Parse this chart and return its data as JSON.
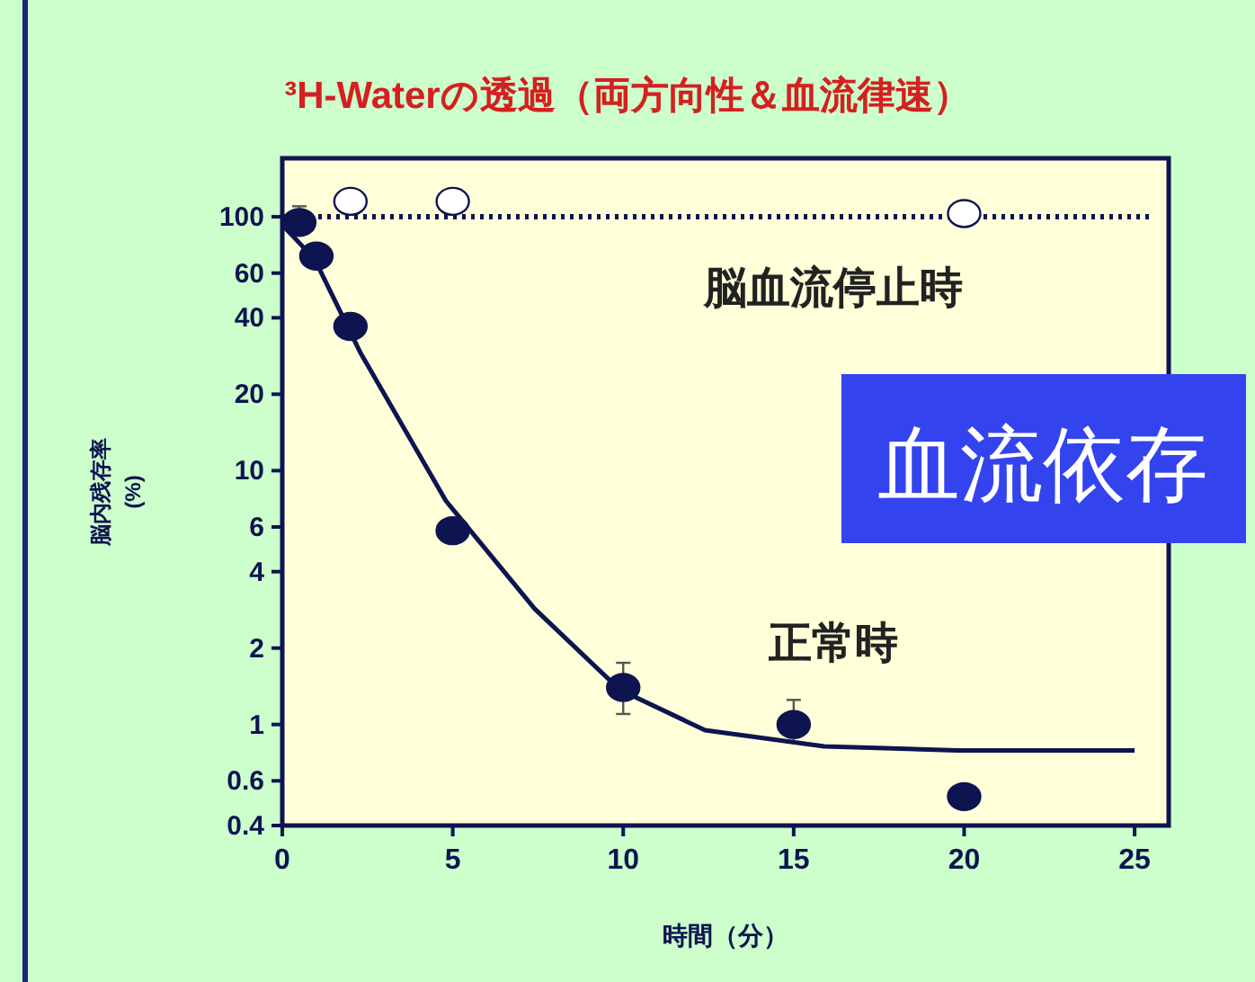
{
  "chart_data": {
    "type": "scatter",
    "title": "³H-Waterの透過（両方向性＆血流律速）",
    "xlabel": "時間（分）",
    "ylabel": "脳内残存率\n(%)",
    "log": "y",
    "xlim": [
      0,
      26
    ],
    "ylim": [
      0.4,
      170
    ],
    "xticks": [
      0,
      5,
      10,
      15,
      20,
      25
    ],
    "yticks": [
      100,
      60,
      40,
      20,
      10,
      6,
      4,
      2,
      1,
      0.6,
      0.4
    ],
    "series": [
      {
        "name": "脳血流停止時",
        "marker": "circle",
        "color": "#ffffff",
        "x": [
          2,
          5,
          20
        ],
        "values": [
          115,
          115,
          103
        ]
      },
      {
        "name": "正常時",
        "marker": "circle",
        "color": "#0d1450",
        "x": [
          0.5,
          1,
          2,
          5,
          10,
          15,
          20
        ],
        "values": [
          95,
          70,
          37,
          5.8,
          1.4,
          1.0,
          0.52
        ],
        "errors": [
          [
            88,
            110
          ],
          null,
          null,
          null,
          [
            1.1,
            1.75
          ],
          [
            0.85,
            1.25
          ],
          null
        ]
      },
      {
        "type": "line",
        "color": "#0d1450",
        "line_style": "solid",
        "x": [
          0,
          0.95,
          2.3,
          4.8,
          7.4,
          9.9,
          12.4,
          15.9,
          19.8,
          25
        ],
        "values": [
          93,
          68,
          29,
          7.6,
          2.86,
          1.37,
          0.95,
          0.82,
          0.79,
          0.79
        ]
      }
    ],
    "ref_lines": [
      {
        "axis": "y",
        "value": 100,
        "line_style": "dotted",
        "color": "#0d1450"
      }
    ],
    "annotations": [
      "血流依存"
    ]
  }
}
